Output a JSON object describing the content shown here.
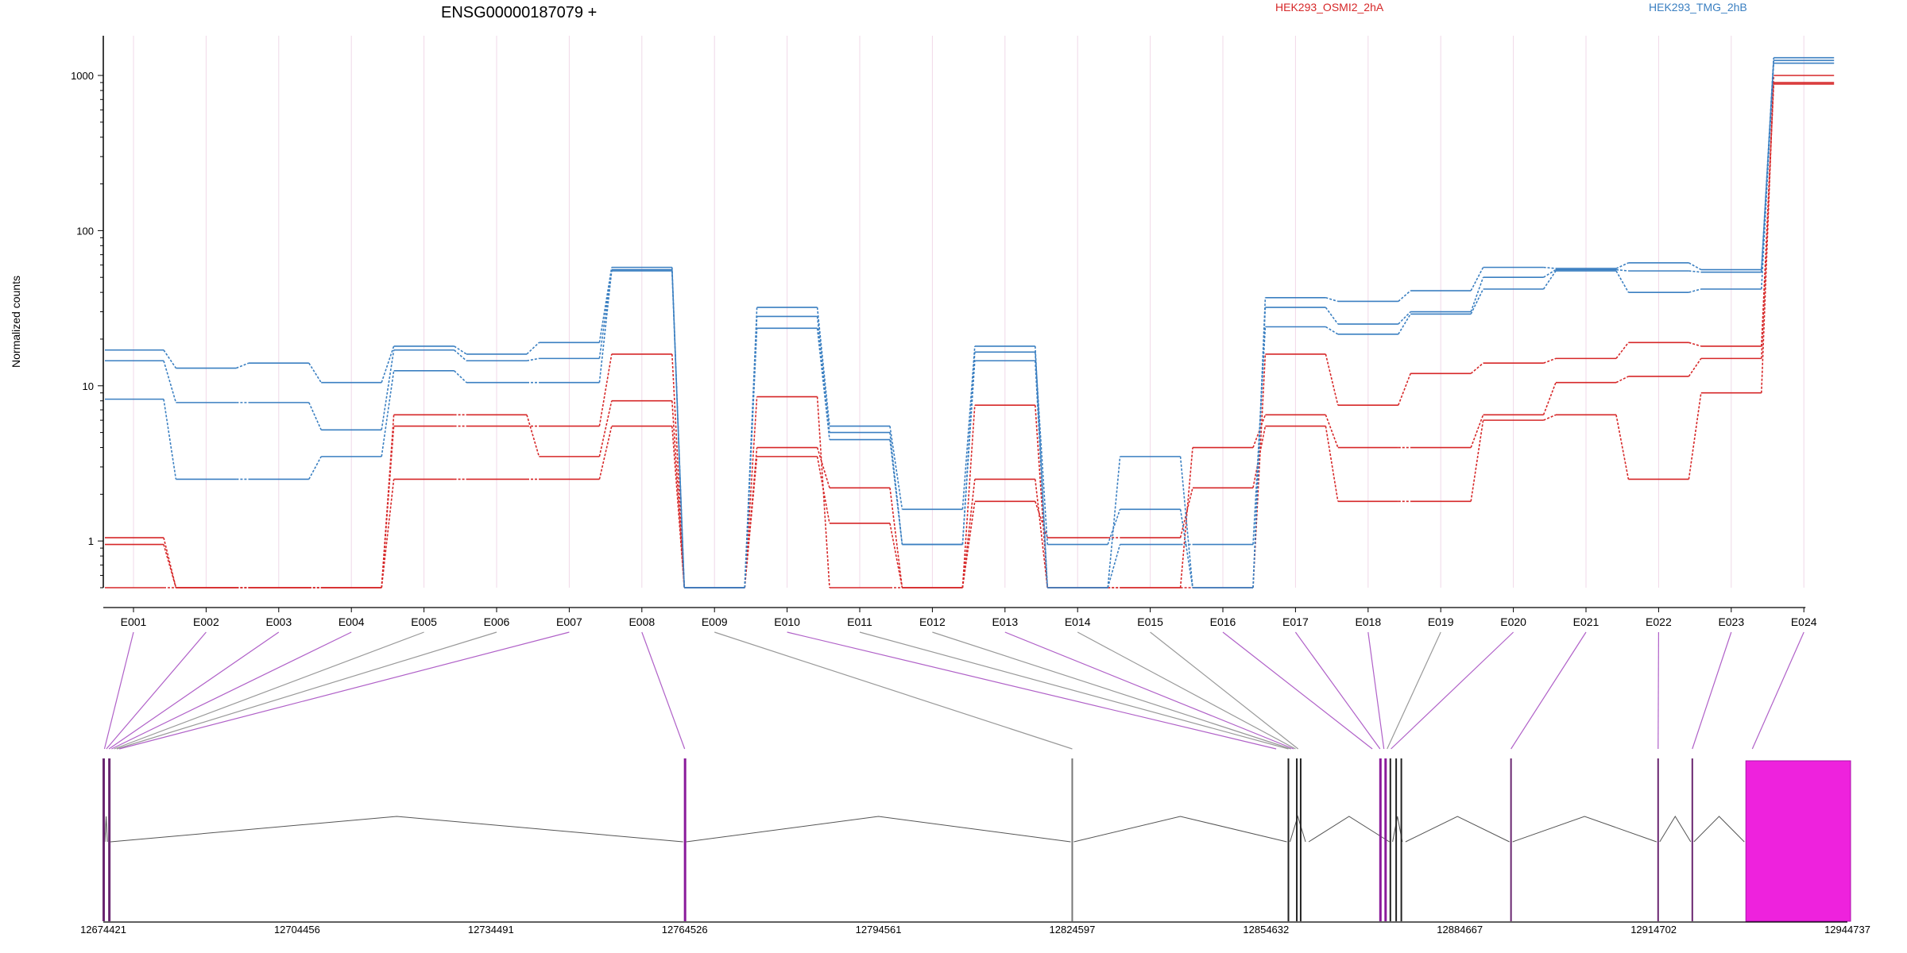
{
  "chart_data": {
    "type": "line",
    "title": "ENSG00000187079 +",
    "ylabel": "Normalized counts",
    "y_scale": "log",
    "ylim": [
      0.5,
      1500
    ],
    "yticks": [
      {
        "value": 1,
        "label": "1"
      },
      {
        "value": 10,
        "label": "10"
      },
      {
        "value": 100,
        "label": "100"
      },
      {
        "value": 1000,
        "label": "1000"
      }
    ],
    "categories": [
      "E001",
      "E002",
      "E003",
      "E004",
      "E005",
      "E006",
      "E007",
      "E008",
      "E009",
      "E010",
      "E011",
      "E012",
      "E013",
      "E014",
      "E015",
      "E016",
      "E017",
      "E018",
      "E019",
      "E020",
      "E021",
      "E022",
      "E023",
      "E024"
    ],
    "legend": [
      {
        "label": "HEK293_OSMI2_2hA",
        "color": "#d62728"
      },
      {
        "label": "HEK293_TMG_2hB",
        "color": "#3a7fc1"
      }
    ],
    "series": [
      {
        "group": "HEK293_OSMI2_2hA",
        "color": "#d62728",
        "values": [
          1.05,
          0.5,
          0.5,
          0.5,
          5.5,
          5.5,
          5.5,
          16,
          0.5,
          8.5,
          0.5,
          0.5,
          7.5,
          0.5,
          0.5,
          0.5,
          16,
          7.5,
          12,
          14,
          15,
          19,
          18,
          880
        ]
      },
      {
        "group": "HEK293_OSMI2_2hA",
        "color": "#d62728",
        "values": [
          0.95,
          0.5,
          0.5,
          0.5,
          6.5,
          6.5,
          3.5,
          8,
          0.5,
          4,
          2.2,
          0.5,
          2.5,
          0.5,
          0.5,
          4,
          6.5,
          4,
          4,
          6.5,
          10.5,
          11.5,
          15,
          900
        ]
      },
      {
        "group": "HEK293_OSMI2_2hA",
        "color": "#d62728",
        "values": [
          0.5,
          0.5,
          0.5,
          0.5,
          2.5,
          2.5,
          2.5,
          5.5,
          0.5,
          3.5,
          1.3,
          0.5,
          1.8,
          1.05,
          1.05,
          2.2,
          5.5,
          1.8,
          1.8,
          6,
          6.5,
          2.5,
          9,
          1000
        ]
      },
      {
        "group": "HEK293_TMG_2hB",
        "color": "#3a7fc1",
        "values": [
          17,
          13,
          14,
          10.5,
          18,
          16,
          19,
          58,
          0.5,
          32,
          5.5,
          1.6,
          18,
          0.5,
          3.5,
          0.5,
          37,
          35,
          41,
          58,
          57,
          62,
          56,
          1300
        ]
      },
      {
        "group": "HEK293_TMG_2hB",
        "color": "#3a7fc1",
        "values": [
          14.5,
          7.8,
          7.8,
          5.2,
          17,
          14.5,
          15,
          56,
          0.5,
          28,
          5,
          0.95,
          16.5,
          0.95,
          1.6,
          0.5,
          32,
          25,
          30,
          50,
          56,
          55,
          54,
          1250
        ]
      },
      {
        "group": "HEK293_TMG_2hB",
        "color": "#3a7fc1",
        "values": [
          8.2,
          2.5,
          2.5,
          3.5,
          12.5,
          10.5,
          10.5,
          55,
          0.5,
          23.5,
          4.5,
          0.95,
          14.5,
          0.5,
          0.95,
          0.95,
          24,
          21.5,
          29,
          42,
          55,
          40,
          42,
          1200
        ]
      }
    ],
    "genomic_axis": {
      "tick_labels": [
        "12674421",
        "12704456",
        "12734491",
        "12764526",
        "12794561",
        "12824597",
        "12854632",
        "12884667",
        "12914702",
        "12944737"
      ]
    },
    "exon_links": [
      {
        "exon": "E001",
        "color": "#b061c8"
      },
      {
        "exon": "E002",
        "color": "#b061c8"
      },
      {
        "exon": "E003",
        "color": "#b061c8"
      },
      {
        "exon": "E004",
        "color": "#b061c8"
      },
      {
        "exon": "E005",
        "color": "#999999"
      },
      {
        "exon": "E006",
        "color": "#999999"
      },
      {
        "exon": "E007",
        "color": "#b061c8"
      },
      {
        "exon": "E008",
        "color": "#b061c8"
      },
      {
        "exon": "E009",
        "color": "#999999"
      },
      {
        "exon": "E010",
        "color": "#b061c8"
      },
      {
        "exon": "E011",
        "color": "#999999"
      },
      {
        "exon": "E012",
        "color": "#999999"
      },
      {
        "exon": "E013",
        "color": "#b061c8"
      },
      {
        "exon": "E014",
        "color": "#999999"
      },
      {
        "exon": "E015",
        "color": "#999999"
      },
      {
        "exon": "E016",
        "color": "#b061c8"
      },
      {
        "exon": "E017",
        "color": "#b061c8"
      },
      {
        "exon": "E018",
        "color": "#b061c8"
      },
      {
        "exon": "E019",
        "color": "#999999"
      },
      {
        "exon": "E020",
        "color": "#b061c8"
      },
      {
        "exon": "E021",
        "color": "#b061c8"
      },
      {
        "exon": "E022",
        "color": "#b061c8"
      },
      {
        "exon": "E023",
        "color": "#b061c8"
      },
      {
        "exon": "E024",
        "color": "#b061c8"
      }
    ]
  }
}
